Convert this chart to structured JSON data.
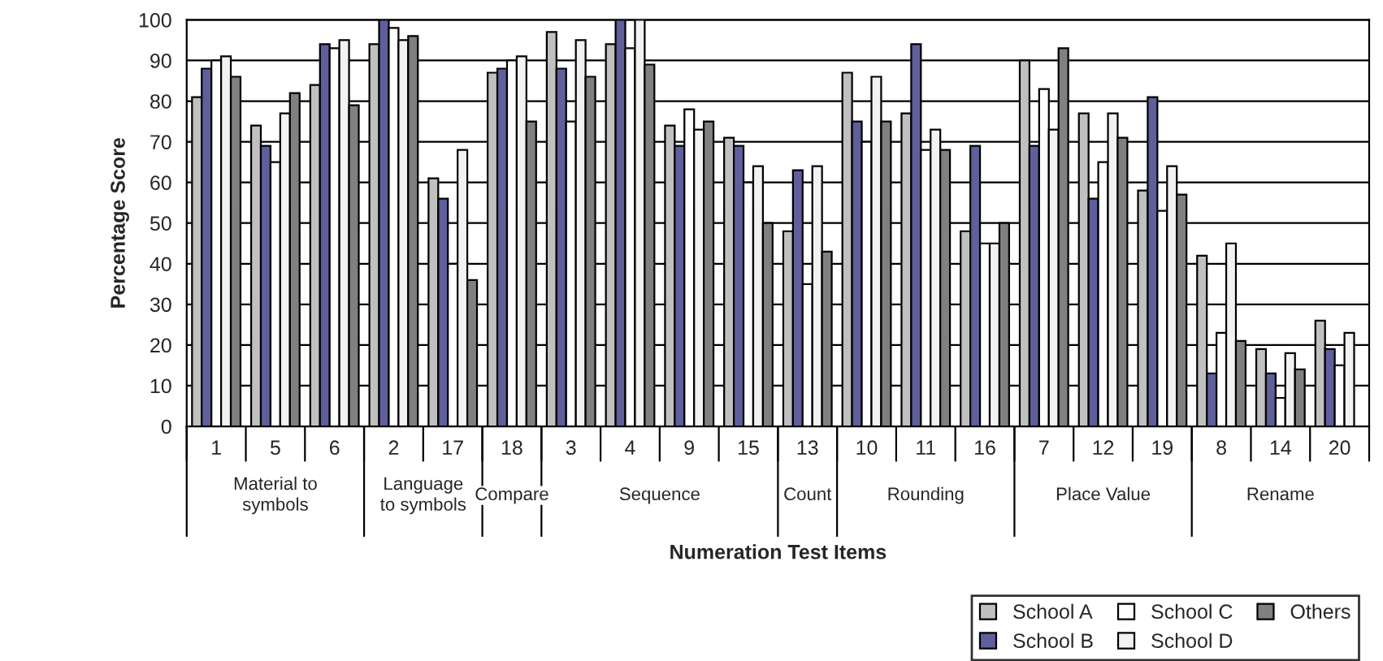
{
  "chart_data": {
    "type": "bar",
    "xlabel": "Numeration Test Items",
    "ylabel": "Percentage Score",
    "categories": [
      "1",
      "5",
      "6",
      "2",
      "17",
      "18",
      "3",
      "4",
      "9",
      "15",
      "13",
      "10",
      "11",
      "16",
      "7",
      "12",
      "19",
      "8",
      "14",
      "20"
    ],
    "series": [
      {
        "name": "School A",
        "color": "#c0c0c0",
        "values": [
          81,
          74,
          84,
          94,
          61,
          87,
          97,
          94,
          74,
          71,
          48,
          87,
          77,
          48,
          90,
          77,
          58,
          42,
          19,
          26
        ]
      },
      {
        "name": "School B",
        "color": "#5f5f9c",
        "values": [
          88,
          69,
          94,
          100,
          56,
          88,
          88,
          100,
          69,
          69,
          63,
          75,
          94,
          69,
          69,
          56,
          81,
          13,
          13,
          19
        ]
      },
      {
        "name": "School C",
        "color": "#ffffff",
        "values": [
          90,
          65,
          93,
          98,
          40,
          90,
          75,
          93,
          78,
          60,
          35,
          70,
          68,
          45,
          83,
          65,
          53,
          23,
          7,
          15
        ]
      },
      {
        "name": "School D",
        "color": "#f2f2f2",
        "values": [
          91,
          77,
          95,
          95,
          68,
          91,
          95,
          100,
          73,
          64,
          64,
          86,
          73,
          45,
          73,
          77,
          64,
          45,
          18,
          23
        ]
      },
      {
        "name": "Others",
        "color": "#808080",
        "values": [
          86,
          82,
          79,
          96,
          36,
          75,
          86,
          89,
          75,
          50,
          43,
          75,
          68,
          50,
          93,
          71,
          57,
          21,
          14,
          null
        ]
      }
    ],
    "annotations": [
      "Material to\nsymbols",
      "Language\nto symbols",
      "Compare",
      "Sequence",
      "Count",
      "Rounding",
      "Place Value",
      "Rename"
    ],
    "ylim": [
      0,
      100
    ],
    "yticks": [
      0,
      10,
      20,
      30,
      40,
      50,
      60,
      70,
      80,
      90,
      100
    ],
    "grid": "y",
    "legend": "bottom right"
  }
}
